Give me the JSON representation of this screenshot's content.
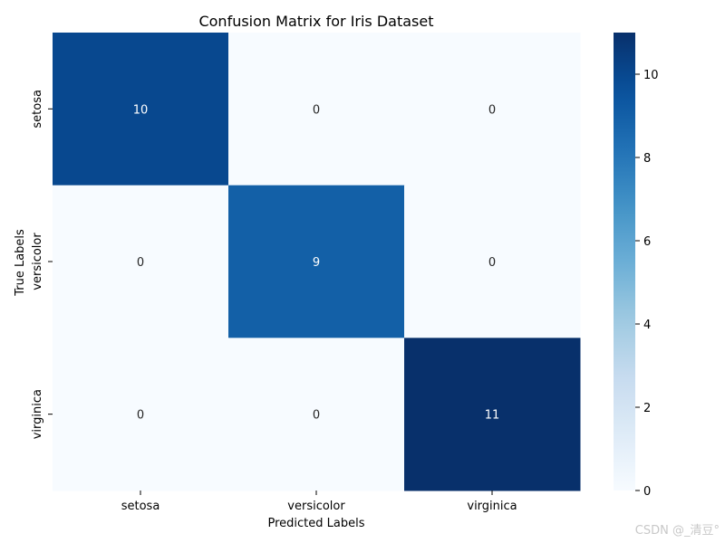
{
  "chart_data": {
    "type": "heatmap",
    "title": "Confusion Matrix for Iris Dataset",
    "xlabel": "Predicted Labels",
    "ylabel": "True Labels",
    "x_categories": [
      "setosa",
      "versicolor",
      "virginica"
    ],
    "y_categories": [
      "setosa",
      "versicolor",
      "virginica"
    ],
    "values": [
      [
        10,
        0,
        0
      ],
      [
        0,
        9,
        0
      ],
      [
        0,
        0,
        11
      ]
    ],
    "colormap": "Blues",
    "colorbar": {
      "range": [
        0,
        11
      ],
      "ticks": [
        0,
        2,
        4,
        6,
        8,
        10
      ]
    },
    "annotated": true
  },
  "watermark": "CSDN @_清豆°"
}
